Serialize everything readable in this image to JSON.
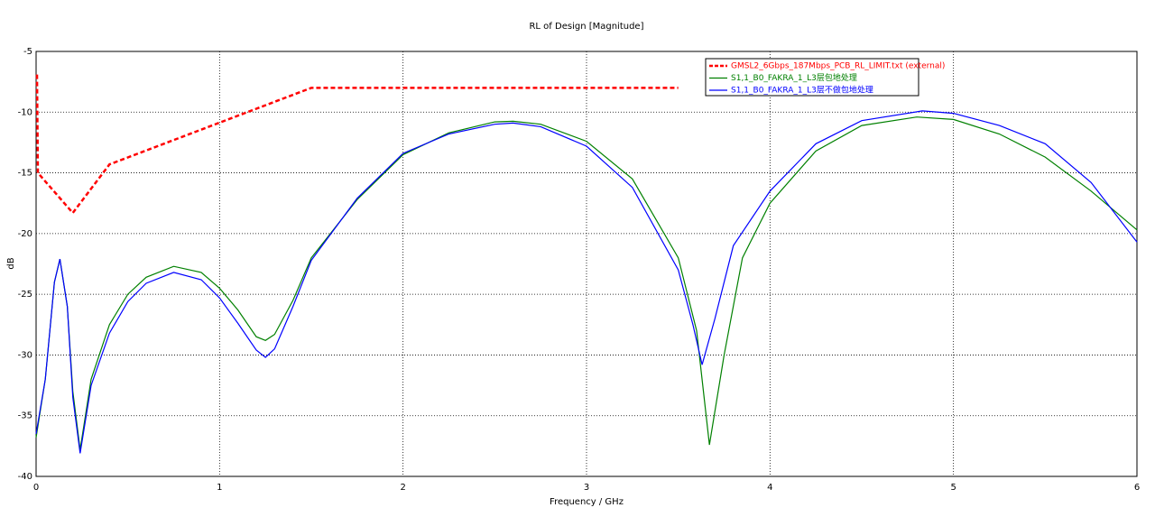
{
  "chart_data": {
    "type": "line",
    "title": "RL of Design [Magnitude]",
    "x_label": "Frequency / GHz",
    "y_label": "dB",
    "xlim": [
      0,
      6
    ],
    "ylim": [
      -40,
      -5
    ],
    "xticks": [
      0,
      1,
      2,
      3,
      4,
      5,
      6
    ],
    "yticks": [
      -40,
      -35,
      -30,
      -25,
      -20,
      -15,
      -10,
      -5
    ],
    "grid": true,
    "legend": "upper right",
    "series": [
      {
        "name": "GMSL2_6Gbps_187Mbps_PCB_RL_LIMIT.txt (external)",
        "color": "#ff0000",
        "dashed": true,
        "x": [
          0.005,
          0.01,
          0.2,
          0.4,
          1.5,
          3.5
        ],
        "values": [
          -6.9,
          -15,
          -18.3,
          -14.3,
          -8,
          -8
        ]
      },
      {
        "name": "S1,1_B0_FAKRA_1_L3层包地处理",
        "color": "#008000",
        "dashed": false,
        "x": [
          0,
          0.05,
          0.1,
          0.13,
          0.17,
          0.2,
          0.24,
          0.3,
          0.4,
          0.5,
          0.6,
          0.75,
          0.9,
          1.0,
          1.1,
          1.2,
          1.25,
          1.3,
          1.4,
          1.5,
          1.75,
          2.0,
          2.25,
          2.5,
          2.6,
          2.75,
          3.0,
          3.25,
          3.5,
          3.6,
          3.67,
          3.75,
          3.85,
          4.0,
          4.25,
          4.5,
          4.8,
          5.0,
          5.25,
          5.5,
          5.75,
          6.0
        ],
        "values": [
          -36.8,
          -32,
          -24,
          -22.1,
          -26,
          -33,
          -37.8,
          -32,
          -27.5,
          -25,
          -23.6,
          -22.7,
          -23.2,
          -24.5,
          -26.3,
          -28.5,
          -28.8,
          -28.3,
          -25.5,
          -22,
          -17.2,
          -13.5,
          -11.7,
          -10.8,
          -10.75,
          -11,
          -12.4,
          -15.5,
          -22,
          -28,
          -37.4,
          -30,
          -22,
          -17.5,
          -13.2,
          -11.1,
          -10.4,
          -10.6,
          -11.8,
          -13.7,
          -16.5,
          -19.7
        ]
      },
      {
        "name": "S1,1_B0_FAKRA_1_L3层不做包地处理",
        "color": "#0000ff",
        "dashed": false,
        "x": [
          0,
          0.05,
          0.1,
          0.13,
          0.17,
          0.2,
          0.24,
          0.3,
          0.4,
          0.5,
          0.6,
          0.75,
          0.9,
          1.0,
          1.1,
          1.2,
          1.25,
          1.3,
          1.4,
          1.5,
          1.75,
          2.0,
          2.25,
          2.5,
          2.6,
          2.75,
          3.0,
          3.25,
          3.5,
          3.58,
          3.63,
          3.7,
          3.8,
          4.0,
          4.25,
          4.5,
          4.83,
          5.0,
          5.25,
          5.5,
          5.75,
          6.0
        ],
        "values": [
          -36.5,
          -32,
          -24,
          -22.1,
          -26,
          -33.5,
          -38.1,
          -32.5,
          -28.2,
          -25.6,
          -24.1,
          -23.2,
          -23.8,
          -25.3,
          -27.4,
          -29.6,
          -30.2,
          -29.5,
          -26,
          -22.2,
          -17.1,
          -13.4,
          -11.8,
          -11,
          -10.9,
          -11.2,
          -12.8,
          -16.2,
          -23,
          -27.5,
          -30.8,
          -27,
          -21,
          -16.5,
          -12.6,
          -10.7,
          -9.9,
          -10.1,
          -11.1,
          -12.6,
          -15.8,
          -20.7
        ]
      }
    ]
  }
}
